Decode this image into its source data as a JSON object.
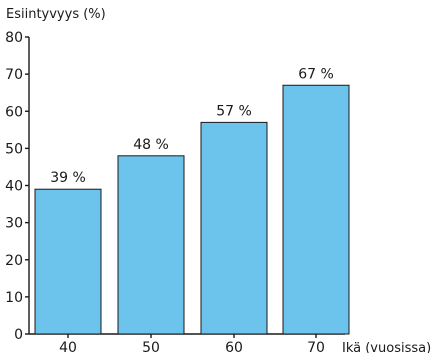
{
  "chart_data": {
    "type": "bar",
    "title": "",
    "ylabel": "Esiintyvyys (%)",
    "xlabel": "Ikä (vuosissa)",
    "categories": [
      "40",
      "50",
      "60",
      "70"
    ],
    "values": [
      39,
      48,
      57,
      67
    ],
    "data_labels": [
      "39 %",
      "48 %",
      "57 %",
      "67 %"
    ],
    "ylim": [
      0,
      80
    ],
    "yticks": [
      "0",
      "10",
      "20",
      "30",
      "40",
      "50",
      "60",
      "70",
      "80"
    ],
    "grid": false,
    "legend": "none",
    "colors": {
      "bar_fill": "#6cc3ec",
      "bar_stroke": "#1a1a1a",
      "axis": "#1a1a1a"
    }
  }
}
